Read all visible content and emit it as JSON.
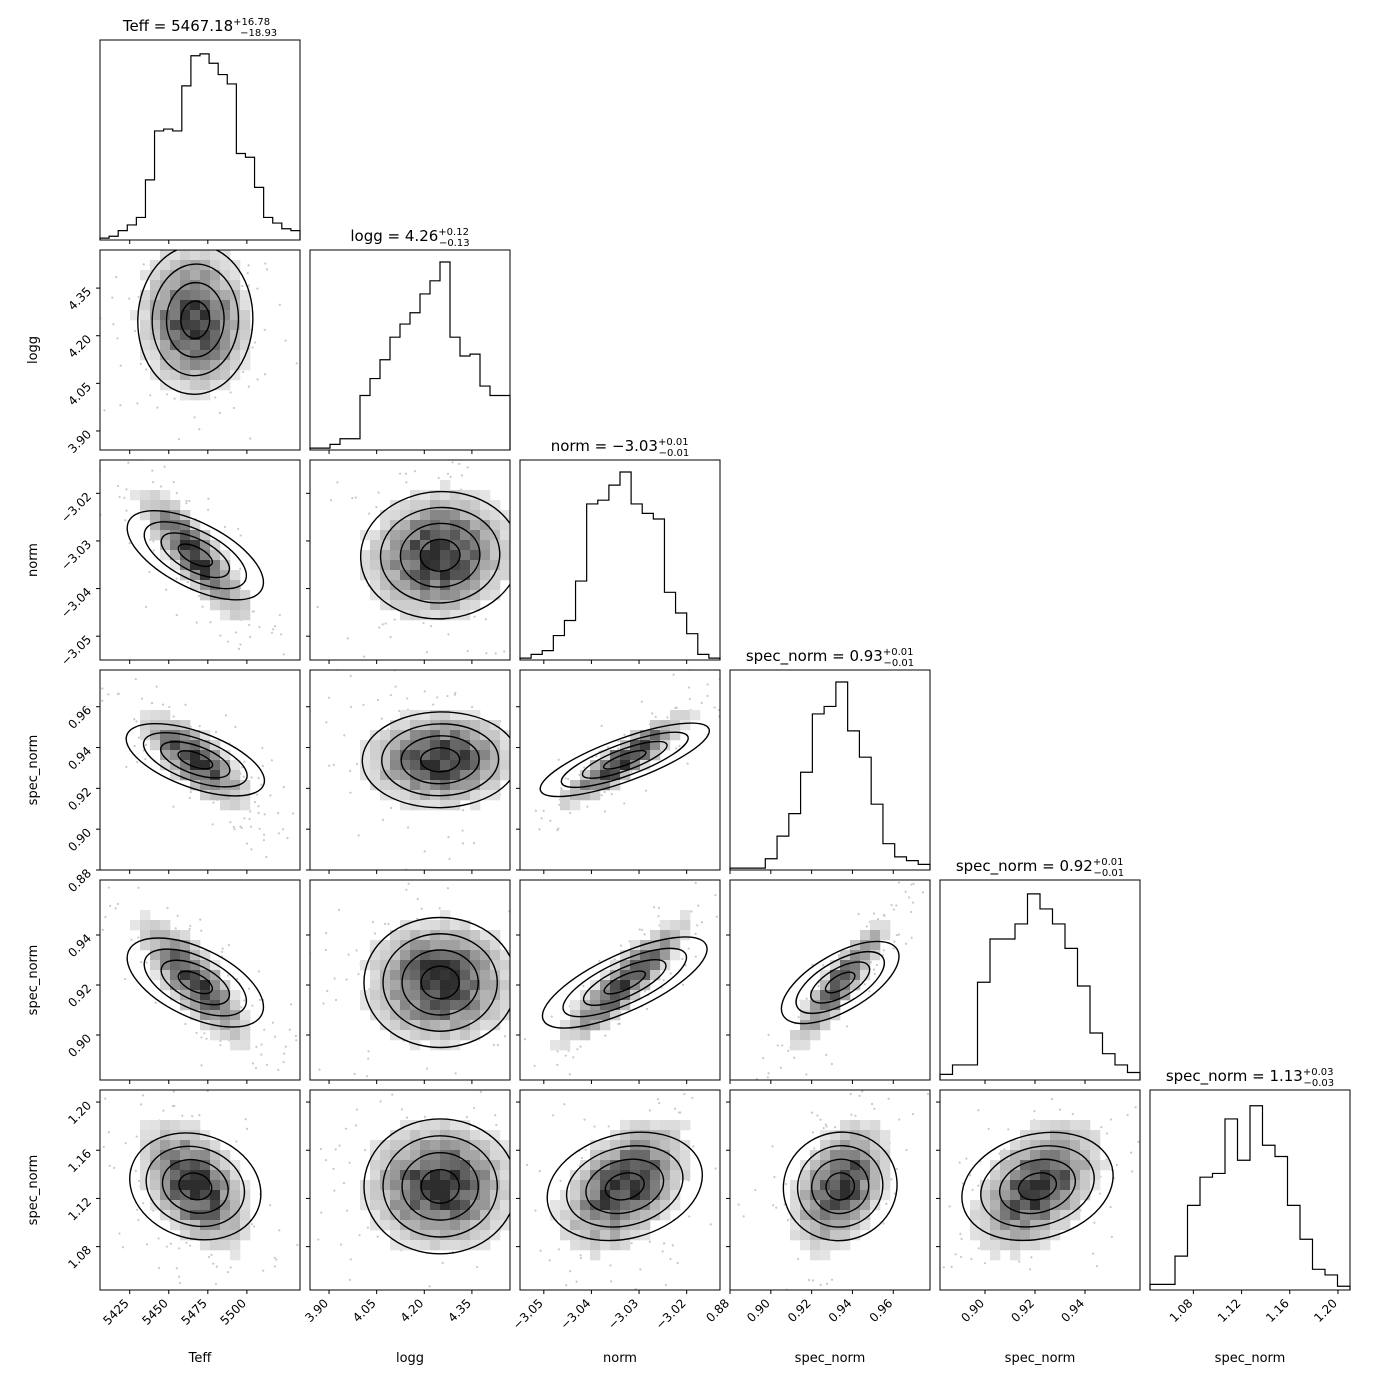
{
  "chart_data": {
    "type": "corner",
    "parameters": [
      {
        "label": "Teff",
        "median": "5467.18",
        "err_plus": "+16.78",
        "err_minus": "−18.93",
        "range": [
          5406,
          5534
        ],
        "ticks": [
          5425,
          5450,
          5475,
          5500
        ],
        "tick_labels": [
          "5425",
          "5450",
          "5475",
          "5500"
        ],
        "hist": [
          0.01,
          0.02,
          0.05,
          0.08,
          0.12,
          0.32,
          0.58,
          0.59,
          0.58,
          0.82,
          0.98,
          0.99,
          0.94,
          0.88,
          0.83,
          0.46,
          0.44,
          0.28,
          0.12,
          0.09,
          0.06,
          0.05
        ],
        "center": 5467,
        "sd": 18
      },
      {
        "label": "logg",
        "median": "4.26",
        "err_plus": "+0.12",
        "err_minus": "−0.13",
        "range": [
          3.84,
          4.47
        ],
        "ticks": [
          3.9,
          4.05,
          4.2,
          4.35
        ],
        "tick_labels": [
          "3.90",
          "4.05",
          "4.20",
          "4.35"
        ],
        "hist": [
          0.01,
          0.01,
          0.03,
          0.06,
          0.06,
          0.29,
          0.38,
          0.48,
          0.6,
          0.67,
          0.73,
          0.83,
          0.9,
          1.0,
          0.6,
          0.5,
          0.51,
          0.34,
          0.29,
          0.29
        ],
        "center": 4.25,
        "sd": 0.12
      },
      {
        "label": "norm",
        "median": "−3.03",
        "err_plus": "+0.01",
        "err_minus": "−0.01",
        "range": [
          -3.055,
          -3.013
        ],
        "ticks": [
          -3.05,
          -3.04,
          -3.03,
          -3.02
        ],
        "tick_labels": [
          "−3.05",
          "−3.04",
          "−3.03",
          "−3.02"
        ],
        "hist": [
          0.01,
          0.03,
          0.05,
          0.13,
          0.21,
          0.42,
          0.83,
          0.85,
          0.93,
          1.0,
          0.83,
          0.78,
          0.75,
          0.36,
          0.25,
          0.14,
          0.03,
          0.01
        ],
        "center": -3.033,
        "sd": 0.007
      },
      {
        "label": "spec_norm",
        "median": "0.93",
        "err_plus": "+0.01",
        "err_minus": "−0.01",
        "range": [
          0.88,
          0.978
        ],
        "ticks": [
          0.88,
          0.9,
          0.92,
          0.94,
          0.96
        ],
        "tick_labels": [
          "0.88",
          "0.90",
          "0.92",
          "0.94",
          "0.96"
        ],
        "hist": [
          0.01,
          0.01,
          0.01,
          0.06,
          0.18,
          0.3,
          0.52,
          0.83,
          0.87,
          1.0,
          0.74,
          0.6,
          0.35,
          0.14,
          0.07,
          0.05,
          0.03
        ],
        "center": 0.934,
        "sd": 0.012
      },
      {
        "label": "spec_norm",
        "median": "0.92",
        "err_plus": "+0.01",
        "err_minus": "−0.01",
        "range": [
          0.882,
          0.962
        ],
        "ticks": [
          0.9,
          0.92,
          0.94
        ],
        "tick_labels": [
          "0.90",
          "0.92",
          "0.94"
        ],
        "hist": [
          0.03,
          0.08,
          0.08,
          0.52,
          0.75,
          0.75,
          0.83,
          0.99,
          0.91,
          0.83,
          0.7,
          0.5,
          0.25,
          0.14,
          0.08,
          0.04
        ],
        "center": 0.921,
        "sd": 0.013
      },
      {
        "label": "spec_norm",
        "median": "1.13",
        "err_plus": "+0.03",
        "err_minus": "−0.03",
        "range": [
          1.044,
          1.21
        ],
        "ticks": [
          1.08,
          1.12,
          1.16,
          1.2
        ],
        "tick_labels": [
          "1.08",
          "1.12",
          "1.16",
          "1.20"
        ],
        "hist": [
          0.03,
          0.03,
          0.18,
          0.45,
          0.6,
          0.62,
          0.91,
          0.69,
          0.98,
          0.77,
          0.71,
          0.45,
          0.27,
          0.11,
          0.08,
          0.02
        ],
        "center": 1.13,
        "sd": 0.028
      }
    ],
    "correlations": [
      [
        1,
        -0.05,
        -0.85,
        -0.75,
        -0.8,
        -0.45
      ],
      [
        -0.05,
        1,
        0.1,
        0.05,
        0.0,
        0.0
      ],
      [
        -0.85,
        0.1,
        1,
        0.9,
        0.9,
        0.45
      ],
      [
        -0.75,
        0.05,
        0.9,
        1,
        0.9,
        0.4
      ],
      [
        -0.8,
        0.0,
        0.9,
        0.9,
        1,
        0.45
      ],
      [
        -0.45,
        0.0,
        0.45,
        0.4,
        0.45,
        1
      ]
    ]
  }
}
